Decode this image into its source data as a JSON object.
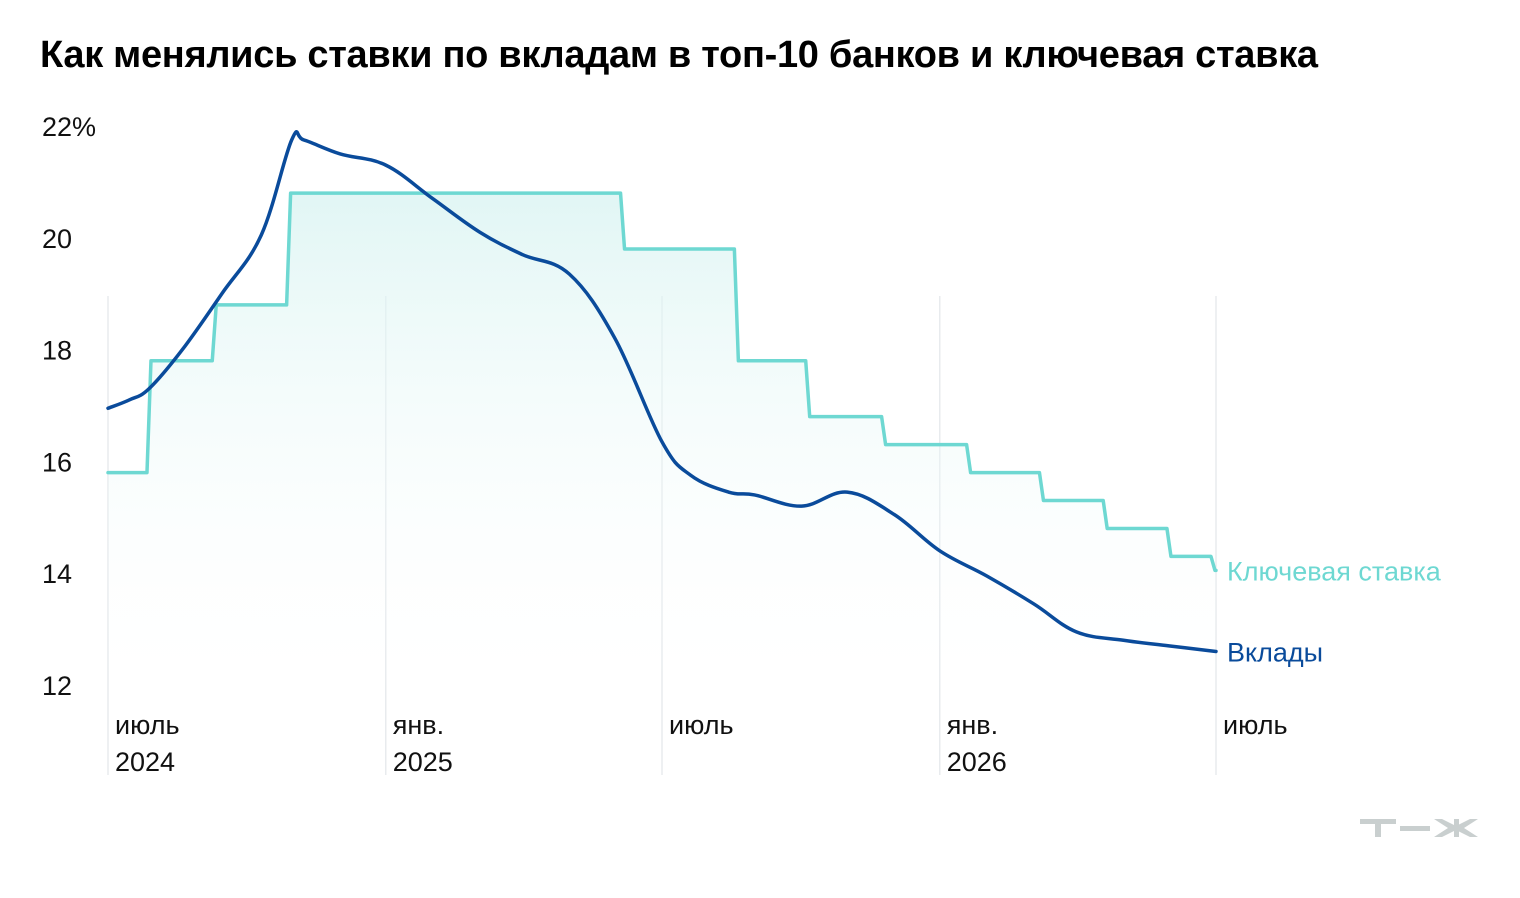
{
  "header": {
    "title": "Как менялись ставки по вкладам в топ-10 банков и ключевая ставка"
  },
  "logo": {
    "text": "т—ж"
  },
  "chart_data": {
    "type": "line",
    "title": "Как менялись ставки по вкладам в топ-10 банков и ключевая ставка",
    "xlabel": "",
    "ylabel": "",
    "ylim": [
      12,
      22
    ],
    "xlim": [
      "2024-06-01",
      "2026-06-01"
    ],
    "grid": "vertical",
    "y_ticks": [
      {
        "value": 22,
        "label": "22%"
      },
      {
        "value": 20,
        "label": "20"
      },
      {
        "value": 18,
        "label": "18"
      },
      {
        "value": 16,
        "label": "16"
      },
      {
        "value": 14,
        "label": "14"
      },
      {
        "value": 12,
        "label": "12"
      }
    ],
    "x_ticks": [
      {
        "date": "2024-06-01",
        "label": "июль",
        "sublabel": "2024"
      },
      {
        "date": "2024-12-01",
        "label": "янв.",
        "sublabel": "2025"
      },
      {
        "date": "2025-06-01",
        "label": "июль",
        "sublabel": ""
      },
      {
        "date": "2025-12-01",
        "label": "янв.",
        "sublabel": "2026"
      },
      {
        "date": "2026-06-01",
        "label": "июль",
        "sublabel": ""
      }
    ],
    "series": [
      {
        "name": "Ключевая ставка",
        "color": "#6ed8d2",
        "style": "step",
        "fill": true,
        "points": [
          {
            "x": "2024-06-01",
            "y": 15.8
          },
          {
            "x": "2024-06-28",
            "y": 17.8
          },
          {
            "x": "2024-08-10",
            "y": 18.8
          },
          {
            "x": "2024-09-28",
            "y": 20.8
          },
          {
            "x": "2025-05-06",
            "y": 19.8
          },
          {
            "x": "2025-07-20",
            "y": 17.8
          },
          {
            "x": "2025-09-05",
            "y": 16.8
          },
          {
            "x": "2025-10-25",
            "y": 16.3
          },
          {
            "x": "2025-12-20",
            "y": 15.8
          },
          {
            "x": "2026-02-06",
            "y": 15.3
          },
          {
            "x": "2026-03-20",
            "y": 14.8
          },
          {
            "x": "2026-05-01",
            "y": 14.3
          },
          {
            "x": "2026-05-30",
            "y": 14.05
          },
          {
            "x": "2026-06-01",
            "y": 14.05
          }
        ]
      },
      {
        "name": "Вклады",
        "color": "#0a4b9b",
        "style": "smooth",
        "fill": false,
        "points": [
          {
            "x": "2024-06-01",
            "y": 16.95
          },
          {
            "x": "2024-06-15",
            "y": 17.1
          },
          {
            "x": "2024-06-28",
            "y": 17.3
          },
          {
            "x": "2024-07-20",
            "y": 18.0
          },
          {
            "x": "2024-08-15",
            "y": 19.0
          },
          {
            "x": "2024-09-10",
            "y": 20.05
          },
          {
            "x": "2024-09-30",
            "y": 21.75
          },
          {
            "x": "2024-10-08",
            "y": 21.75
          },
          {
            "x": "2024-11-01",
            "y": 21.5
          },
          {
            "x": "2024-12-01",
            "y": 21.3
          },
          {
            "x": "2025-01-01",
            "y": 20.7
          },
          {
            "x": "2025-02-01",
            "y": 20.1
          },
          {
            "x": "2025-03-01",
            "y": 19.7
          },
          {
            "x": "2025-04-01",
            "y": 19.35
          },
          {
            "x": "2025-05-01",
            "y": 18.2
          },
          {
            "x": "2025-06-01",
            "y": 16.35
          },
          {
            "x": "2025-06-20",
            "y": 15.75
          },
          {
            "x": "2025-07-15",
            "y": 15.45
          },
          {
            "x": "2025-08-01",
            "y": 15.4
          },
          {
            "x": "2025-09-01",
            "y": 15.2
          },
          {
            "x": "2025-10-01",
            "y": 15.45
          },
          {
            "x": "2025-11-01",
            "y": 15.05
          },
          {
            "x": "2025-12-01",
            "y": 14.4
          },
          {
            "x": "2026-01-01",
            "y": 13.95
          },
          {
            "x": "2026-02-01",
            "y": 13.45
          },
          {
            "x": "2026-03-01",
            "y": 12.95
          },
          {
            "x": "2026-04-01",
            "y": 12.8
          },
          {
            "x": "2026-05-01",
            "y": 12.7
          },
          {
            "x": "2026-06-01",
            "y": 12.6
          }
        ]
      }
    ]
  }
}
